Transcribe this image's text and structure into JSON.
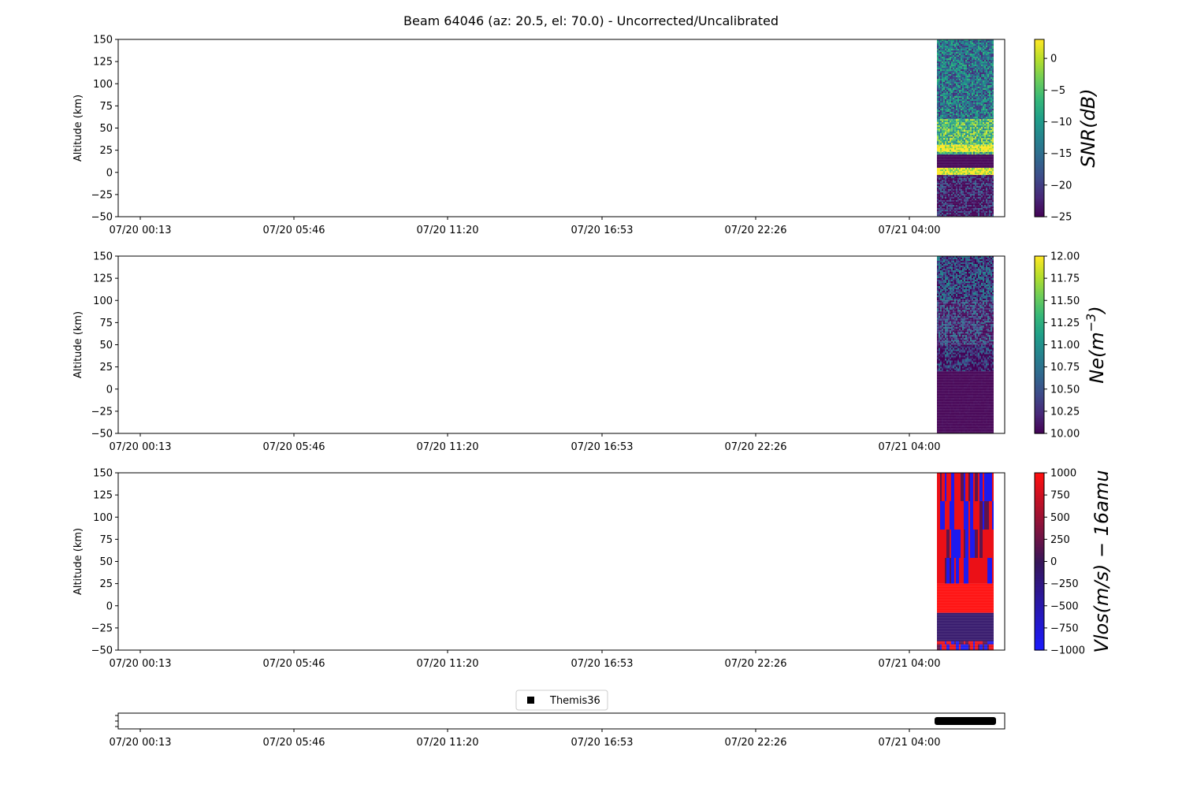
{
  "figure": {
    "title": "Beam 64046 (az: 20.5, el: 70.0) - Uncorrected/Uncalibrated"
  },
  "chart_data": [
    {
      "type": "heatmap",
      "title": "",
      "ylabel": "Altitude (km)",
      "ylim": [
        -50,
        150
      ],
      "yticks": [
        150,
        125,
        100,
        75,
        50,
        25,
        0,
        -25,
        -50
      ],
      "xticks": [
        "07/20 00:13",
        "07/20 05:46",
        "07/20 11:20",
        "07/20 16:53",
        "07/20 22:26",
        "07/21 04:00"
      ],
      "data_x_range": [
        "07/21 05:00",
        "07/21 07:15"
      ],
      "colormap": "viridis",
      "colorbar": {
        "label": "SNR(dB)",
        "range": [
          -25,
          3
        ],
        "ticks": [
          0,
          -5,
          -10,
          -15,
          -20,
          -25
        ]
      },
      "bands": [
        {
          "alt": [
            150,
            60
          ],
          "value": -14
        },
        {
          "alt": [
            60,
            31
          ],
          "value": -6
        },
        {
          "alt": [
            31,
            23
          ],
          "value": 3
        },
        {
          "alt": [
            23,
            20
          ],
          "value": -8
        },
        {
          "alt": [
            20,
            5
          ],
          "value": -25
        },
        {
          "alt": [
            5,
            -3
          ],
          "value": 3
        },
        {
          "alt": [
            -3,
            -50
          ],
          "value": -23
        }
      ]
    },
    {
      "type": "heatmap",
      "title": "",
      "ylabel": "Altitude (km)",
      "ylim": [
        -50,
        150
      ],
      "yticks": [
        150,
        125,
        100,
        75,
        50,
        25,
        0,
        -25,
        -50
      ],
      "xticks": [
        "07/20 00:13",
        "07/20 05:46",
        "07/20 11:20",
        "07/20 16:53",
        "07/20 22:26",
        "07/21 04:00"
      ],
      "data_x_range": [
        "07/21 05:00",
        "07/21 07:15"
      ],
      "colormap": "viridis",
      "colorbar": {
        "label": "Ne(m^-3)",
        "range": [
          10,
          12
        ],
        "ticks": [
          "12.00",
          "11.75",
          "11.50",
          "11.25",
          "11.00",
          "10.75",
          "10.50",
          "10.25",
          "10.00"
        ]
      },
      "bands": [
        {
          "alt": [
            150,
            100
          ],
          "value": 10.45
        },
        {
          "alt": [
            100,
            50
          ],
          "value": 10.3
        },
        {
          "alt": [
            50,
            20
          ],
          "value": 10.25
        },
        {
          "alt": [
            20,
            -50
          ],
          "value": 10.0
        }
      ]
    },
    {
      "type": "heatmap",
      "title": "",
      "ylabel": "Altitude (km)",
      "ylim": [
        -50,
        150
      ],
      "yticks": [
        150,
        125,
        100,
        75,
        50,
        25,
        0,
        -25,
        -50
      ],
      "xticks": [
        "07/20 00:13",
        "07/20 05:46",
        "07/20 11:20",
        "07/20 16:53",
        "07/20 22:26",
        "07/21 04:00"
      ],
      "data_x_range": [
        "07/21 05:00",
        "07/21 07:15"
      ],
      "colormap": "blue-red",
      "colorbar": {
        "label": "Vlos(m/s) − 16amu",
        "range": [
          -1000,
          1000
        ],
        "ticks": [
          1000,
          750,
          500,
          250,
          0,
          -250,
          -500,
          -750,
          -1000
        ]
      },
      "bands": [
        {
          "alt": [
            150,
            25
          ],
          "value": "mixed"
        },
        {
          "alt": [
            25,
            -8
          ],
          "value": 1000
        },
        {
          "alt": [
            -8,
            -40
          ],
          "value": -100
        },
        {
          "alt": [
            -40,
            -50
          ],
          "value": "mixed"
        }
      ]
    },
    {
      "type": "scatter",
      "title": "",
      "legend": {
        "entries": [
          "Themis36"
        ],
        "position": "top-center"
      },
      "xticks": [
        "07/20 00:13",
        "07/20 05:46",
        "07/20 11:20",
        "07/20 16:53",
        "07/20 22:26",
        "07/21 04:00"
      ],
      "series": [
        {
          "name": "Themis36",
          "x_range": [
            "07/21 05:00",
            "07/21 07:15"
          ],
          "color": "#000000"
        }
      ]
    }
  ]
}
